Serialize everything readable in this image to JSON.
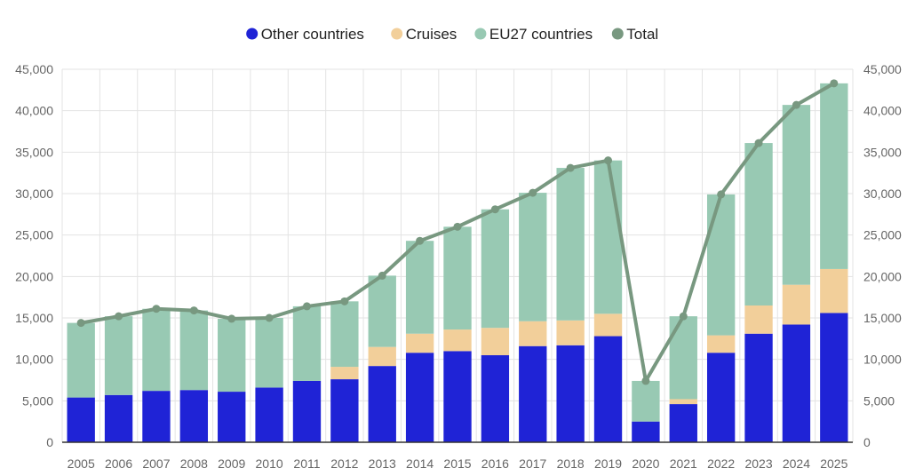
{
  "chart_data": {
    "type": "bar",
    "stacked": true,
    "categories": [
      "2005",
      "2006",
      "2007",
      "2008",
      "2009",
      "2010",
      "2011",
      "2012",
      "2013",
      "2014",
      "2015",
      "2016",
      "2017",
      "2018",
      "2019",
      "2020",
      "2021",
      "2022",
      "2023",
      "2024",
      "2025"
    ],
    "series": [
      {
        "name": "Other countries",
        "type": "bar",
        "color": "#1f23d6",
        "values": [
          5400,
          5700,
          6200,
          6300,
          6100,
          6600,
          7400,
          7600,
          9200,
          10800,
          11000,
          10500,
          11600,
          11700,
          12800,
          2500,
          4600,
          10800,
          13100,
          14200,
          15600
        ]
      },
      {
        "name": "Cruises",
        "type": "bar",
        "color": "#f2cf9a",
        "values": [
          0,
          0,
          0,
          0,
          0,
          0,
          0,
          1500,
          2300,
          2300,
          2600,
          3300,
          3000,
          3000,
          2700,
          0,
          600,
          2100,
          3400,
          4800,
          5300
        ]
      },
      {
        "name": "EU27 countries",
        "type": "bar",
        "color": "#98c9b3",
        "values": [
          9000,
          9500,
          9900,
          9600,
          8800,
          8400,
          9000,
          7900,
          8600,
          11200,
          12400,
          14300,
          15500,
          18400,
          18500,
          4900,
          10000,
          17000,
          19600,
          21700,
          22400
        ]
      },
      {
        "name": "Total",
        "type": "line",
        "color": "#789880",
        "values": [
          14400,
          15200,
          16100,
          15900,
          14900,
          15000,
          16400,
          17000,
          20100,
          24300,
          26000,
          28100,
          30100,
          33100,
          34000,
          7400,
          15200,
          29900,
          36100,
          40700,
          43300
        ]
      }
    ],
    "ylim": [
      0,
      45000
    ],
    "yticks": [
      "0",
      "5,000",
      "10,000",
      "15,000",
      "20,000",
      "25,000",
      "30,000",
      "35,000",
      "40,000",
      "45,000"
    ],
    "ytick_values": [
      0,
      5000,
      10000,
      15000,
      20000,
      25000,
      30000,
      35000,
      40000,
      45000
    ],
    "y_axes": "left-and-right",
    "grid": true,
    "legend_position": "top-center",
    "title": "",
    "xlabel": "",
    "ylabel": ""
  }
}
